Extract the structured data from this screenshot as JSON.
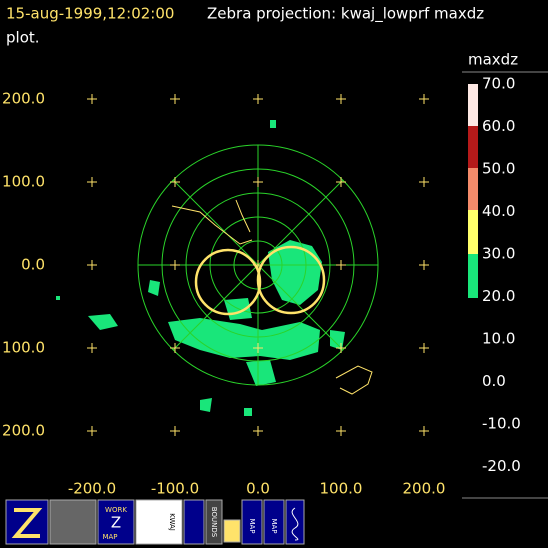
{
  "header": {
    "time": "15-aug-1999,12:02:00",
    "title": "Zebra projection: kwaj_lowprf maxdz",
    "title_cont": "plot."
  },
  "plot": {
    "y_labels": [
      "200.0",
      "100.0",
      "0.0",
      "100.0",
      "200.0"
    ],
    "x_labels": [
      "-200.0",
      "-100.0",
      "0.0",
      "100.0",
      "200.0"
    ]
  },
  "legend": {
    "title": "maxdz",
    "labels": [
      "70.0",
      "60.0",
      "50.0",
      "40.0",
      "30.0",
      "20.0",
      "10.0",
      "0.0",
      "-10.0",
      "-20.0"
    ]
  },
  "toolbar": {
    "buttons": [
      {
        "label": "WORK"
      },
      {
        "label": "Z"
      },
      {
        "label": "MAP"
      },
      {
        "label": "KWAJ"
      },
      {
        "label": "BOUNDS"
      },
      {
        "label": "MAP"
      },
      {
        "label": "MAP"
      }
    ]
  }
}
